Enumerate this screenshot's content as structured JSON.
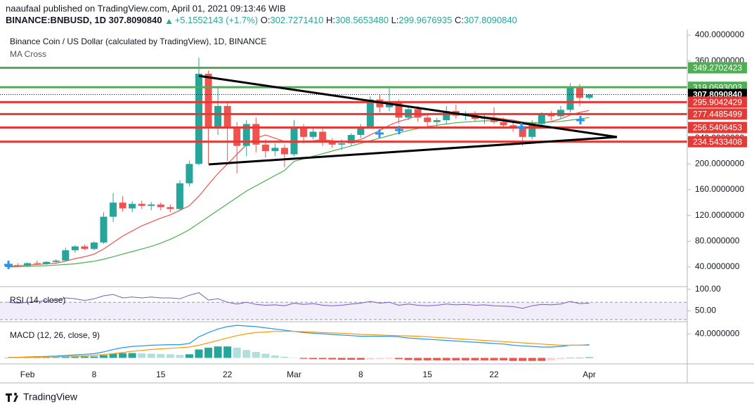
{
  "header": {
    "publisher": "naaufaal published on TradingView.com, April 01, 2021 09:13:46 WIB",
    "symbol": "BINANCE:BNBUSD, 1D",
    "last": "307.8090840",
    "change": "+5.1552143 (+1.7%)",
    "ohlc": [
      {
        "label": "O:",
        "value": "302.7271410"
      },
      {
        "label": "H:",
        "value": "308.5653480"
      },
      {
        "label": "L:",
        "value": "299.9676935"
      },
      {
        "label": "C:",
        "value": "307.8090840"
      }
    ]
  },
  "footer": {
    "brand": "TradingView"
  },
  "chart_data": [
    {
      "type": "candlestick",
      "title": "Binance Coin / US Dollar (calculated by TradingView), 1D, BINANCE",
      "subtitle": "MA Cross",
      "categories": [
        null,
        null,
        "Feb",
        null,
        null,
        null,
        null,
        null,
        null,
        "8",
        null,
        null,
        null,
        null,
        null,
        null,
        "15",
        null,
        null,
        null,
        null,
        null,
        null,
        "22",
        null,
        null,
        null,
        null,
        null,
        null,
        "Mar",
        null,
        null,
        null,
        null,
        null,
        null,
        "8",
        null,
        null,
        null,
        null,
        null,
        null,
        "15",
        null,
        null,
        null,
        null,
        null,
        null,
        "22",
        null,
        null,
        null,
        null,
        null,
        null,
        null,
        null,
        null,
        "Apr"
      ],
      "open": [
        40,
        43,
        42,
        46,
        45,
        48,
        50,
        66,
        72,
        68,
        78,
        118,
        140,
        131,
        138,
        135,
        137,
        133,
        130,
        170,
        200,
        340,
        258,
        290,
        255,
        228,
        262,
        230,
        220,
        225,
        215,
        258,
        242,
        250,
        235,
        230,
        232,
        245,
        258,
        300,
        288,
        297,
        272,
        285,
        272,
        265,
        268,
        282,
        275,
        278,
        270,
        272,
        265,
        260,
        256,
        242,
        262,
        276,
        274,
        284,
        320,
        302.727141
      ],
      "high": [
        46,
        46,
        47,
        50,
        49,
        52,
        70,
        74,
        75,
        80,
        125,
        155,
        150,
        142,
        143,
        141,
        140,
        137,
        175,
        205,
        365,
        345,
        320,
        296,
        265,
        268,
        272,
        238,
        232,
        230,
        268,
        262,
        258,
        255,
        240,
        238,
        248,
        262,
        305,
        308,
        318,
        300,
        290,
        290,
        278,
        272,
        290,
        292,
        282,
        282,
        278,
        288,
        272,
        268,
        260,
        268,
        280,
        282,
        290,
        325,
        324,
        308.565348
      ],
      "low": [
        38,
        40,
        40,
        44,
        43,
        46,
        49,
        62,
        66,
        66,
        76,
        110,
        126,
        125,
        130,
        128,
        128,
        125,
        128,
        165,
        198,
        200,
        245,
        205,
        185,
        212,
        218,
        210,
        212,
        195,
        212,
        232,
        238,
        228,
        225,
        222,
        228,
        240,
        255,
        280,
        282,
        262,
        268,
        266,
        258,
        258,
        262,
        270,
        268,
        266,
        262,
        262,
        255,
        250,
        228,
        238,
        258,
        268,
        270,
        280,
        290,
        299.9676935
      ],
      "close": [
        43,
        42,
        46,
        45,
        48,
        50,
        66,
        72,
        68,
        78,
        118,
        140,
        131,
        138,
        135,
        137,
        133,
        130,
        170,
        200,
        340,
        258,
        290,
        255,
        228,
        262,
        230,
        220,
        225,
        215,
        258,
        242,
        250,
        235,
        230,
        232,
        245,
        258,
        300,
        288,
        297,
        272,
        285,
        272,
        265,
        268,
        282,
        275,
        278,
        270,
        272,
        265,
        260,
        256,
        242,
        262,
        276,
        274,
        284,
        320,
        302.65,
        307.809084
      ],
      "up_color": "#26a69a",
      "down_color": "#ef5350",
      "lines": [
        {
          "color": "#ef5350",
          "values": [
            41,
            42,
            43,
            44,
            45,
            46,
            49,
            53,
            56,
            60,
            68,
            78,
            88,
            96,
            104,
            110,
            116,
            121,
            128,
            135,
            150,
            168,
            185,
            200,
            215,
            230,
            240,
            245,
            240,
            235,
            232,
            235,
            236,
            238,
            236,
            234,
            235,
            238,
            245,
            252,
            260,
            266,
            270,
            275,
            276,
            277,
            278,
            278,
            276,
            274,
            273,
            272,
            270,
            268,
            265,
            263,
            264,
            266,
            270,
            276,
            280,
            283
          ]
        },
        {
          "color": "#4caf50",
          "values": [
            40,
            40.5,
            41,
            41.5,
            42,
            43,
            44,
            45,
            47,
            49,
            52,
            56,
            60,
            64,
            68,
            72,
            77,
            83,
            90,
            98,
            108,
            118,
            128,
            138,
            148,
            158,
            166,
            174,
            182,
            190,
            204,
            208,
            212,
            216,
            220,
            224,
            228,
            232,
            236,
            240,
            244,
            248,
            252,
            255,
            258,
            260,
            262,
            264,
            265,
            266,
            267,
            267,
            267,
            266,
            265,
            264,
            264,
            265,
            266,
            268,
            270,
            272
          ]
        }
      ],
      "levels": [
        {
          "price": 349.2702423,
          "color": "#4caf50"
        },
        {
          "price": 319.0593003,
          "color": "#4caf50"
        },
        {
          "price": {
            "value": 307.809084,
            "label": "307.8090840"
          },
          "color": "#000000",
          "dash": true
        },
        {
          "price": 295.9042429,
          "color": "#e53935"
        },
        {
          "price": 277.4485499,
          "color": "#e53935"
        },
        {
          "price": 256.5406453,
          "color": "#e53935"
        },
        {
          "price": 234.5433408,
          "color": "#e53935"
        }
      ],
      "ylim": [
        9.5,
        408.7
      ],
      "yticks": [
        {
          "value": 40,
          "label": "40.0000000"
        },
        {
          "value": 80,
          "label": "80.0000000"
        },
        {
          "value": 120,
          "label": "120.0000000"
        },
        {
          "value": 160,
          "label": "160.0000000"
        },
        {
          "value": 200,
          "label": "200.0000000"
        },
        {
          "value": 240,
          "label": "240.0000000"
        },
        {
          "value": 280,
          "label": "280.0000000"
        },
        {
          "value": 320,
          "label": "320.0000000"
        },
        {
          "value": 360,
          "label": "360.0000000"
        },
        {
          "value": 400,
          "label": "400.0000000"
        }
      ]
    },
    {
      "type": "line",
      "title": "RSI (14, close)",
      "color": "#7e57c2",
      "values": [
        70,
        68,
        70,
        72,
        73,
        75,
        80,
        78,
        74,
        78,
        85,
        88,
        80,
        82,
        80,
        82,
        80,
        80,
        78,
        86,
        92,
        75,
        78,
        70,
        66,
        70,
        65,
        63,
        64,
        62,
        68,
        65,
        67,
        63,
        62,
        63,
        66,
        68,
        72,
        68,
        70,
        63,
        66,
        63,
        62,
        63,
        66,
        64,
        65,
        63,
        64,
        62,
        61,
        60,
        56,
        62,
        65,
        64,
        66,
        72,
        67,
        68
      ],
      "band": [
        30,
        70
      ],
      "ylim": [
        25,
        106
      ],
      "yticks": [
        {
          "value": 100,
          "label": "100.00"
        },
        {
          "value": 50,
          "label": "50.00"
        }
      ]
    },
    {
      "type": "macd",
      "title": "MACD (12, 26, close, 9)",
      "series": [
        {
          "color": "#2196f3",
          "values": [
            1,
            1,
            1.5,
            2,
            2.5,
            3,
            4,
            5,
            6,
            7,
            10,
            14,
            17,
            19,
            20,
            21,
            21.5,
            22,
            22,
            24,
            35,
            42,
            48,
            52,
            54,
            53,
            52,
            50,
            48,
            46,
            44,
            42,
            41,
            40,
            39,
            38,
            37,
            36,
            36,
            36,
            36,
            35,
            33,
            32,
            31,
            30,
            29,
            28,
            27,
            26,
            25,
            24,
            23,
            21,
            20,
            19,
            18,
            18,
            19,
            21,
            21,
            22
          ]
        },
        {
          "color": "#ff9800",
          "values": [
            0.5,
            0.8,
            1,
            1.3,
            1.6,
            2,
            2.5,
            3,
            3.5,
            4.5,
            5.5,
            7,
            9,
            11,
            12.5,
            14,
            15,
            16,
            17,
            18,
            21,
            25,
            29,
            33,
            37,
            40,
            42,
            43,
            44,
            44,
            44,
            43.5,
            43,
            42,
            41.5,
            41,
            40,
            39,
            38.5,
            38,
            37.5,
            37,
            36.5,
            36,
            35,
            34,
            33,
            32,
            31,
            30,
            29,
            28,
            27,
            26,
            25,
            24,
            23,
            22,
            21,
            21,
            21,
            21
          ]
        }
      ],
      "histogram": [
        0.5,
        0.2,
        0.5,
        0.7,
        0.9,
        1,
        1.5,
        2,
        2.5,
        2.5,
        4.5,
        7,
        8,
        8,
        7.5,
        7,
        6.5,
        6,
        5,
        6,
        14,
        17,
        19,
        19,
        17,
        13,
        10,
        7,
        4,
        2,
        0,
        -1.5,
        -2,
        -2,
        -2.5,
        -3,
        -3,
        -3,
        -2.5,
        -2,
        -1.5,
        -2,
        -3.5,
        -4,
        -4,
        -4,
        -4,
        -4,
        -4,
        -4,
        -4,
        -4,
        -4,
        -5,
        -5,
        -5,
        -5,
        -4,
        -2,
        0,
        0,
        1
      ],
      "ylim": [
        -10,
        60
      ],
      "yticks": [
        {
          "value": 40,
          "label": "40.0000000"
        }
      ]
    }
  ]
}
